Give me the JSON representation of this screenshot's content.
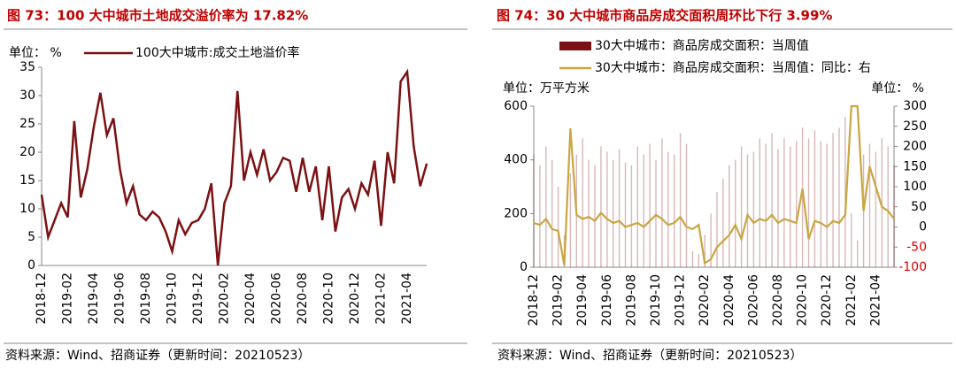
{
  "chart_data": [
    {
      "type": "line",
      "title": "图 73：100 大中城市土地成交溢价率为 17.82%",
      "unit_label": "单位：  %",
      "source": "资料来源：Wind、招商证券（更新时间：20210523）",
      "categories": [
        "2018-12",
        null,
        null,
        null,
        "2019-02",
        null,
        null,
        null,
        "2019-04",
        null,
        null,
        null,
        "2019-06",
        null,
        null,
        null,
        "2019-08",
        null,
        null,
        null,
        "2019-10",
        null,
        null,
        null,
        "2019-12",
        null,
        null,
        null,
        "2020-02",
        null,
        null,
        null,
        "2020-04",
        null,
        null,
        null,
        "2020-06",
        null,
        null,
        null,
        "2020-08",
        null,
        null,
        null,
        "2020-10",
        null,
        null,
        null,
        "2020-12",
        null,
        null,
        null,
        "2021-02",
        null,
        null,
        null,
        "2021-04",
        null,
        null,
        null
      ],
      "series": [
        {
          "name": "100大中城市:成交土地溢价率",
          "color": "#7b1113",
          "values": [
            12.5,
            5,
            8,
            11,
            8.5,
            25.5,
            12,
            17,
            24.5,
            30.5,
            23,
            26,
            17,
            11,
            14,
            9,
            8,
            9.5,
            8.5,
            6,
            2.5,
            8,
            5.5,
            7.5,
            8,
            10,
            14.5,
            0,
            11,
            14,
            30.8,
            15,
            20,
            16,
            20.5,
            15,
            16.5,
            19,
            18.5,
            13,
            19,
            13,
            17.5,
            8,
            17.5,
            6,
            12,
            13.5,
            10,
            14.5,
            12.5,
            18.5,
            7,
            20,
            14.5,
            32.5,
            34.2,
            21,
            14,
            18
          ]
        }
      ],
      "ylim": [
        0,
        35
      ],
      "yticks": [
        0,
        5,
        10,
        15,
        20,
        25,
        30,
        35
      ]
    },
    {
      "type": "combo",
      "title": "图 74：30 大中城市商品房成交面积周环比下行 3.99%",
      "y_label": "单位：万平方米",
      "y2_label": "单位：  %",
      "source": "资料来源：Wind、招商证券（更新时间：20210523）",
      "categories": [
        "2018-12",
        null,
        null,
        null,
        "2019-02",
        null,
        null,
        null,
        "2019-04",
        null,
        null,
        null,
        "2019-06",
        null,
        null,
        null,
        "2019-08",
        null,
        null,
        null,
        "2019-10",
        null,
        null,
        null,
        "2019-12",
        null,
        null,
        null,
        "2020-02",
        null,
        null,
        null,
        "2020-04",
        null,
        null,
        null,
        "2020-06",
        null,
        null,
        null,
        "2020-08",
        null,
        null,
        null,
        "2020-10",
        null,
        null,
        null,
        "2020-12",
        null,
        null,
        null,
        "2021-02",
        null,
        null,
        null,
        "2021-04",
        null,
        null,
        null
      ],
      "series": [
        {
          "name": "30大中城市：商品房成交面积：当周值",
          "type": "bar",
          "axis": "y",
          "color": "#7b1113",
          "values": [
            420,
            380,
            450,
            400,
            300,
            120,
            350,
            420,
            480,
            400,
            380,
            450,
            430,
            400,
            440,
            390,
            380,
            450,
            420,
            460,
            400,
            480,
            430,
            420,
            500,
            460,
            60,
            50,
            120,
            200,
            280,
            330,
            380,
            400,
            450,
            420,
            430,
            480,
            460,
            500,
            440,
            480,
            450,
            470,
            520,
            480,
            510,
            470,
            460,
            500,
            520,
            560,
            200,
            100,
            420,
            460,
            430,
            480,
            450,
            380
          ]
        },
        {
          "name": "30大中城市：商品房成交面积：当周值：同比：右",
          "type": "line",
          "axis": "y2",
          "color": "#c9a640",
          "values": [
            10,
            5,
            20,
            -5,
            -10,
            -95,
            245,
            30,
            20,
            25,
            15,
            35,
            20,
            10,
            15,
            0,
            5,
            10,
            0,
            15,
            30,
            20,
            5,
            10,
            25,
            0,
            -5,
            5,
            -90,
            -80,
            -50,
            -35,
            -20,
            5,
            -30,
            30,
            10,
            20,
            15,
            30,
            10,
            20,
            15,
            10,
            95,
            -30,
            15,
            10,
            0,
            15,
            10,
            30,
            300,
            300,
            40,
            150,
            100,
            50,
            40,
            20
          ]
        }
      ],
      "ylim": [
        0,
        600
      ],
      "yticks": [
        0,
        200,
        400,
        600
      ],
      "y2lim": [
        -100,
        300
      ],
      "y2ticks": [
        -100,
        -50,
        0,
        50,
        100,
        150,
        200,
        250,
        300
      ]
    }
  ]
}
